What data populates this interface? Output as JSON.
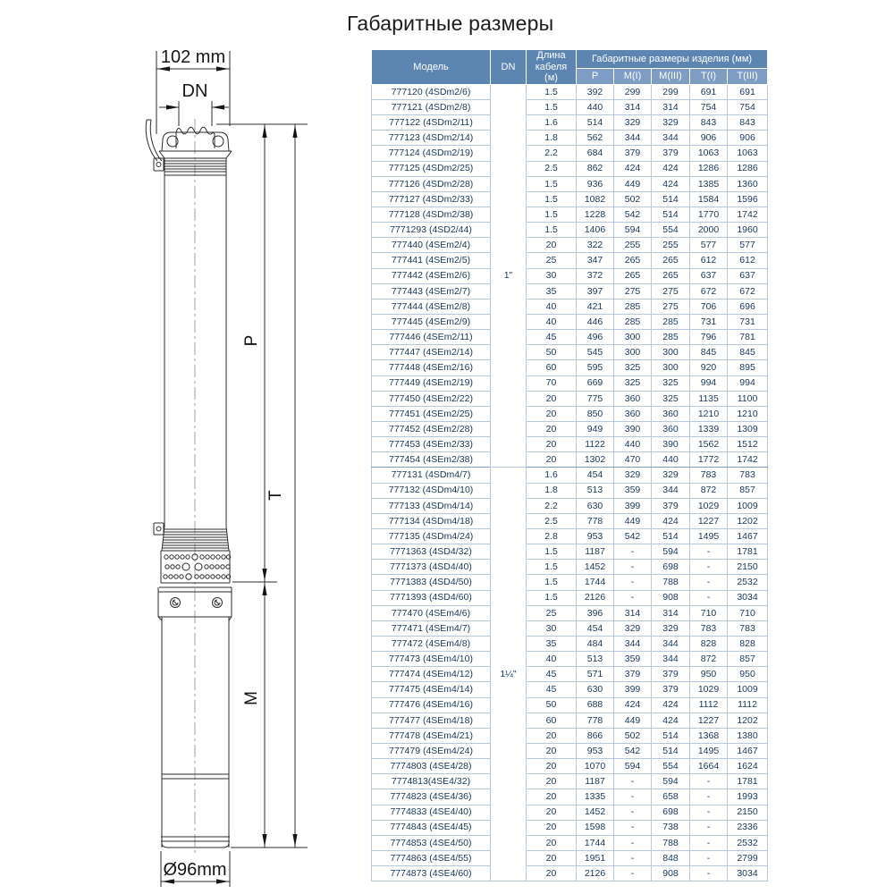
{
  "page": {
    "title": "Габаритные размеры"
  },
  "diagram": {
    "labels": {
      "head_width": "102 mm",
      "outlet": "DN",
      "pump_length": "P",
      "total_length": "T",
      "motor_length": "M",
      "body_diameter": "Ø96mm"
    }
  },
  "table": {
    "headers": {
      "model": "Модель",
      "dn": "DN",
      "cable_length": "Длина кабеля (м)",
      "dimensions_group": "Габаритные размеры изделия (мм)",
      "dimension_cols": [
        "P",
        "M(I)",
        "M(III)",
        "T(I)",
        "T(III)"
      ]
    },
    "dn_groups": [
      {
        "label": "1\"",
        "span": 25
      },
      {
        "label": "1¼\"",
        "span": 27
      }
    ],
    "rows": [
      [
        "777120 (4SDm2/6)",
        "1.5",
        "392",
        "299",
        "299",
        "691",
        "691"
      ],
      [
        "777121 (4SDm2/8)",
        "1.5",
        "440",
        "314",
        "314",
        "754",
        "754"
      ],
      [
        "777122 (4SDm2/11)",
        "1.6",
        "514",
        "329",
        "329",
        "843",
        "843"
      ],
      [
        "777123 (4SDm2/14)",
        "1.8",
        "562",
        "344",
        "344",
        "906",
        "906"
      ],
      [
        "777124 (4SDm2/19)",
        "2.2",
        "684",
        "379",
        "379",
        "1063",
        "1063"
      ],
      [
        "777125 (4SDm2/25)",
        "2.5",
        "862",
        "424",
        "424",
        "1286",
        "1286"
      ],
      [
        "777126 (4SDm2/28)",
        "1.5",
        "936",
        "449",
        "424",
        "1385",
        "1360"
      ],
      [
        "777127 (4SDm2/33)",
        "1.5",
        "1082",
        "502",
        "514",
        "1584",
        "1596"
      ],
      [
        "777128 (4SDm2/38)",
        "1.5",
        "1228",
        "542",
        "514",
        "1770",
        "1742"
      ],
      [
        "7771293 (4SD2/44)",
        "1.5",
        "1406",
        "594",
        "554",
        "2000",
        "1960"
      ],
      [
        "777440 (4SEm2/4)",
        "20",
        "322",
        "255",
        "255",
        "577",
        "577"
      ],
      [
        "777441 (4SEm2/5)",
        "25",
        "347",
        "265",
        "265",
        "612",
        "612"
      ],
      [
        "777442 (4SEm2/6)",
        "30",
        "372",
        "265",
        "265",
        "637",
        "637"
      ],
      [
        "777443 (4SEm2/7)",
        "35",
        "397",
        "275",
        "275",
        "672",
        "672"
      ],
      [
        "777444 (4SEm2/8)",
        "40",
        "421",
        "285",
        "275",
        "706",
        "696"
      ],
      [
        "777445 (4SEm2/9)",
        "40",
        "446",
        "285",
        "285",
        "731",
        "731"
      ],
      [
        "777446 (4SEm2/11)",
        "45",
        "496",
        "300",
        "285",
        "796",
        "781"
      ],
      [
        "777447 (4SEm2/14)",
        "50",
        "545",
        "300",
        "300",
        "845",
        "845"
      ],
      [
        "777448 (4SEm2/16)",
        "60",
        "595",
        "325",
        "300",
        "920",
        "895"
      ],
      [
        "777449 (4SEm2/19)",
        "70",
        "669",
        "325",
        "325",
        "994",
        "994"
      ],
      [
        "777450 (4SEm2/22)",
        "20",
        "775",
        "360",
        "325",
        "1135",
        "1100"
      ],
      [
        "777451 (4SEm2/25)",
        "20",
        "850",
        "360",
        "360",
        "1210",
        "1210"
      ],
      [
        "777452 (4SEm2/28)",
        "20",
        "949",
        "390",
        "360",
        "1339",
        "1309"
      ],
      [
        "777453 (4SEm2/33)",
        "20",
        "1122",
        "440",
        "390",
        "1562",
        "1512"
      ],
      [
        "777454 (4SEm2/38)",
        "20",
        "1302",
        "470",
        "440",
        "1772",
        "1742"
      ],
      [
        "777131 (4SDm4/7)",
        "1.6",
        "454",
        "329",
        "329",
        "783",
        "783"
      ],
      [
        "777132 (4SDm4/10)",
        "1.8",
        "513",
        "359",
        "344",
        "872",
        "857"
      ],
      [
        "777133 (4SDm4/14)",
        "2.2",
        "630",
        "399",
        "379",
        "1029",
        "1009"
      ],
      [
        "777134 (4SDm4/18)",
        "2.5",
        "778",
        "449",
        "424",
        "1227",
        "1202"
      ],
      [
        "777135 (4SDm4/24)",
        "2.8",
        "953",
        "542",
        "514",
        "1495",
        "1467"
      ],
      [
        "7771363 (4SD4/32)",
        "1.5",
        "1187",
        "-",
        "594",
        "-",
        "1781"
      ],
      [
        "7771373 (4SD4/40)",
        "1.5",
        "1452",
        "-",
        "698",
        "-",
        "2150"
      ],
      [
        "7771383 (4SD4/50)",
        "1.5",
        "1744",
        "-",
        "788",
        "-",
        "2532"
      ],
      [
        "7771393 (4SD4/60)",
        "1.5",
        "2126",
        "-",
        "908",
        "-",
        "3034"
      ],
      [
        "777470 (4SEm4/6)",
        "25",
        "396",
        "314",
        "314",
        "710",
        "710"
      ],
      [
        "777471 (4SEm4/7)",
        "30",
        "454",
        "329",
        "329",
        "783",
        "783"
      ],
      [
        "777472 (4SEm4/8)",
        "35",
        "484",
        "344",
        "344",
        "828",
        "828"
      ],
      [
        "777473 (4SEm4/10)",
        "40",
        "513",
        "359",
        "344",
        "872",
        "857"
      ],
      [
        "777474 (4SEm4/12)",
        "45",
        "571",
        "379",
        "379",
        "950",
        "950"
      ],
      [
        "777475 (4SEm4/14)",
        "45",
        "630",
        "399",
        "379",
        "1029",
        "1009"
      ],
      [
        "777476 (4SEm4/16)",
        "50",
        "688",
        "424",
        "424",
        "1112",
        "1112"
      ],
      [
        "777477 (4SEm4/18)",
        "60",
        "778",
        "449",
        "424",
        "1227",
        "1202"
      ],
      [
        "777478 (4SEm4/21)",
        "20",
        "866",
        "502",
        "514",
        "1368",
        "1380"
      ],
      [
        "777479 (4SEm4/24)",
        "20",
        "953",
        "542",
        "514",
        "1495",
        "1467"
      ],
      [
        "7774803 (4SE4/28)",
        "20",
        "1070",
        "594",
        "554",
        "1664",
        "1624"
      ],
      [
        "7774813(4SE4/32)",
        "20",
        "1187",
        "-",
        "594",
        "-",
        "1781"
      ],
      [
        "7774823 (4SE4/36)",
        "20",
        "1335",
        "-",
        "658",
        "-",
        "1993"
      ],
      [
        "7774833 (4SE4/40)",
        "20",
        "1452",
        "-",
        "698",
        "-",
        "2150"
      ],
      [
        "7774843 (4SE4/45)",
        "20",
        "1598",
        "-",
        "738",
        "-",
        "2336"
      ],
      [
        "7774853 (4SE4/50)",
        "20",
        "1744",
        "-",
        "788",
        "-",
        "2532"
      ],
      [
        "7774863 (4SE4/55)",
        "20",
        "1951",
        "-",
        "848",
        "-",
        "2799"
      ],
      [
        "7774873 (4SE4/60)",
        "20",
        "2126",
        "-",
        "908",
        "-",
        "3034"
      ]
    ]
  },
  "colors": {
    "header_bg": "#5d85b2",
    "subheader_bg": "#7e9dc4",
    "row_border": "#b5c8dd",
    "cell_text": "#17375d",
    "diagram_line": "#2b2b2b"
  }
}
